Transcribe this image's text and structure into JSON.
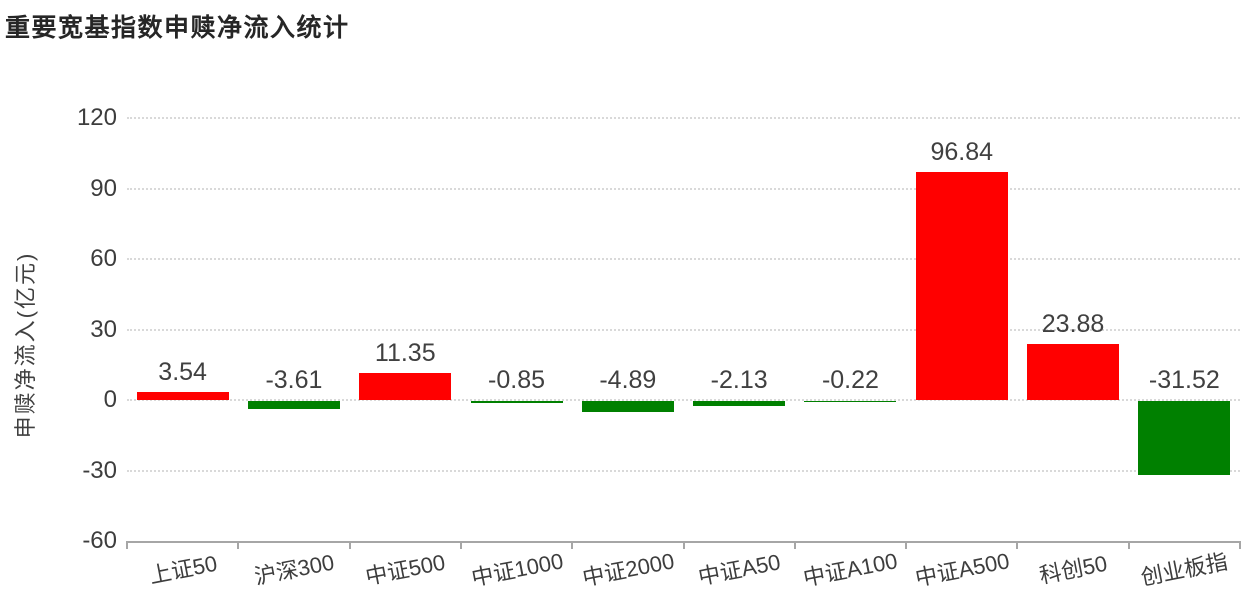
{
  "chart_data": {
    "type": "bar",
    "title": "重要宽基指数申赎净流入统计",
    "categories": [
      "上证50",
      "沪深300",
      "中证500",
      "中证1000",
      "中证2000",
      "中证A50",
      "中证A100",
      "中证A500",
      "科创50",
      "创业板指"
    ],
    "values": [
      3.54,
      -3.61,
      11.35,
      -0.85,
      -4.89,
      -2.13,
      -0.22,
      96.84,
      23.88,
      -31.52
    ],
    "data_labels": [
      "3.54",
      "-3.61",
      "11.35",
      "-0.85",
      "-4.89",
      "-2.13",
      "-0.22",
      "96.84",
      "23.88",
      "-31.52"
    ],
    "xlabel": "",
    "ylabel": "申赎净流入(亿元)",
    "ylim": [
      -60,
      120
    ],
    "yticks": [
      120,
      90,
      60,
      30,
      0,
      -30,
      -60
    ],
    "grid": true,
    "gridline_style": "dotted",
    "legend": false,
    "bar_color_positive": "#ff0000",
    "bar_color_negative": "#008000"
  },
  "colors": {
    "positive_bar": "#ff0000",
    "negative_bar": "#008000",
    "title_text": "#262626",
    "axis_text": "#404040",
    "gridline": "#d9d9d9",
    "axis_line": "#a6a6a6",
    "background": "#ffffff"
  }
}
